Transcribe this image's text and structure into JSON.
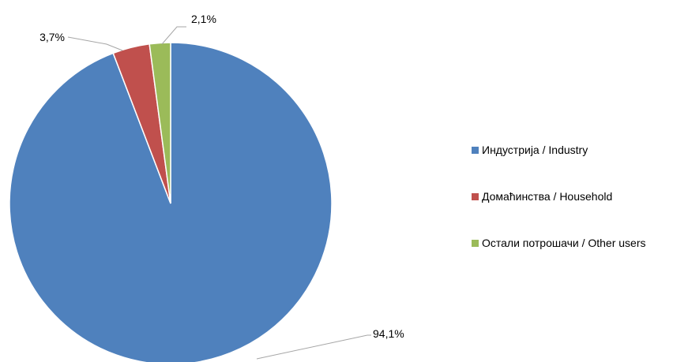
{
  "chart_data": {
    "type": "pie",
    "categories": [
      "Индустрија / Industry",
      "Домаћинства / Household",
      "Остали потрошачи / Other users"
    ],
    "values": [
      94.1,
      3.7,
      2.1
    ],
    "value_labels": [
      "94,1%",
      "3,7%",
      "2,1%"
    ],
    "colors": [
      "#4F81BD",
      "#C0504D",
      "#9BBB59"
    ],
    "legend_position": "right",
    "start_angle": "12 o'clock",
    "direction": "clockwise"
  }
}
